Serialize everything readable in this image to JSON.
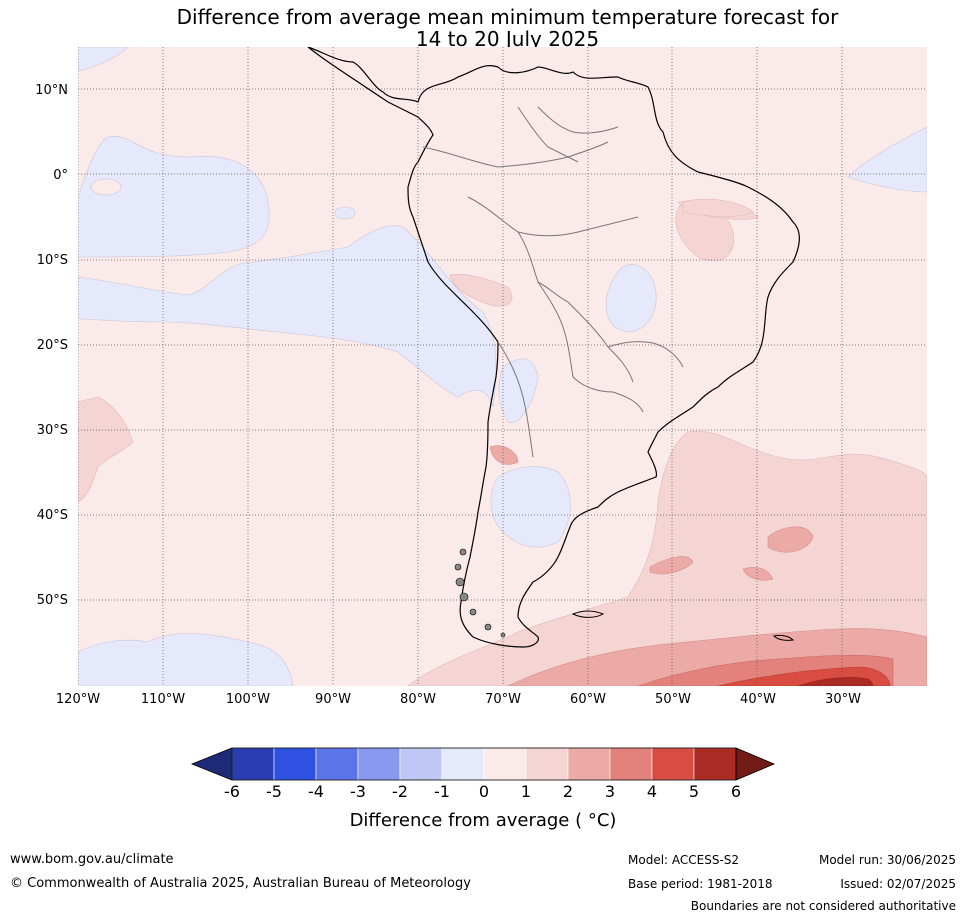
{
  "title_line1": "Difference from average mean minimum temperature forecast for",
  "title_line2": "14 to 20 July 2025",
  "lat_labels": [
    "10°N",
    "0°",
    "10°S",
    "20°S",
    "30°S",
    "40°S",
    "50°S"
  ],
  "lon_labels": [
    "120°W",
    "110°W",
    "100°W",
    "90°W",
    "80°W",
    "70°W",
    "60°W",
    "50°W",
    "40°W",
    "30°W"
  ],
  "colorbar": {
    "ticks": [
      "-6",
      "-5",
      "-4",
      "-3",
      "-2",
      "-1",
      "0",
      "1",
      "2",
      "3",
      "4",
      "5",
      "6"
    ],
    "colors": [
      "#1c2a78",
      "#2a3db0",
      "#2f51e1",
      "#5b74e7",
      "#8798ee",
      "#bfc8f5",
      "#e6e9fb",
      "#fbeaea",
      "#f5d4d4",
      "#ecaaa7",
      "#e3827c",
      "#d84c41",
      "#aa2b23",
      "#721a16"
    ],
    "label": "Difference from average ( °C)"
  },
  "chart_data": {
    "type": "heatmap",
    "title": "Difference from average mean minimum temperature forecast for 14 to 20 July 2025",
    "region": "South America and surrounding oceans",
    "lon_range": [
      -120,
      -20
    ],
    "lat_range": [
      -60,
      15
    ],
    "color_scale": "Difference from average (°C)",
    "levels": [
      -6,
      -5,
      -4,
      -3,
      -2,
      -1,
      0,
      1,
      2,
      3,
      4,
      5,
      6
    ],
    "features": [
      {
        "area": "Most of the continent and surrounding ocean",
        "range": "0 to 1"
      },
      {
        "area": "Eastern equatorial Pacific",
        "range": "-1 to 0"
      },
      {
        "area": "Pacific off Peru and northern Chile",
        "range": "-1 to 0"
      },
      {
        "area": "Southern Pacific near 60°S, 120°W-90°W",
        "range": "-1 to 0"
      },
      {
        "area": "Central Argentina near 40°S",
        "range": "-1 to 0"
      },
      {
        "area": "Central Brazil near 15°S",
        "range": "-1 to 0"
      },
      {
        "area": "Southwest Atlantic south of 30°S",
        "range": "1 to 2"
      },
      {
        "area": "Southwest Pacific near 30°S, 120°W",
        "range": "1 to 2"
      },
      {
        "area": "Far South Atlantic near 58°S",
        "range": "2 to 5"
      }
    ]
  },
  "footer": {
    "url": "www.bom.gov.au/climate",
    "copyright": "© Commonwealth of Australia 2025, Australian Bureau of Meteorology",
    "model": "Model: ACCESS-S2",
    "base_period": "Base period: 1981-2018",
    "model_run": "Model run: 30/06/2025",
    "issued": "Issued: 02/07/2025",
    "note": "Boundaries are not considered authoritative"
  }
}
